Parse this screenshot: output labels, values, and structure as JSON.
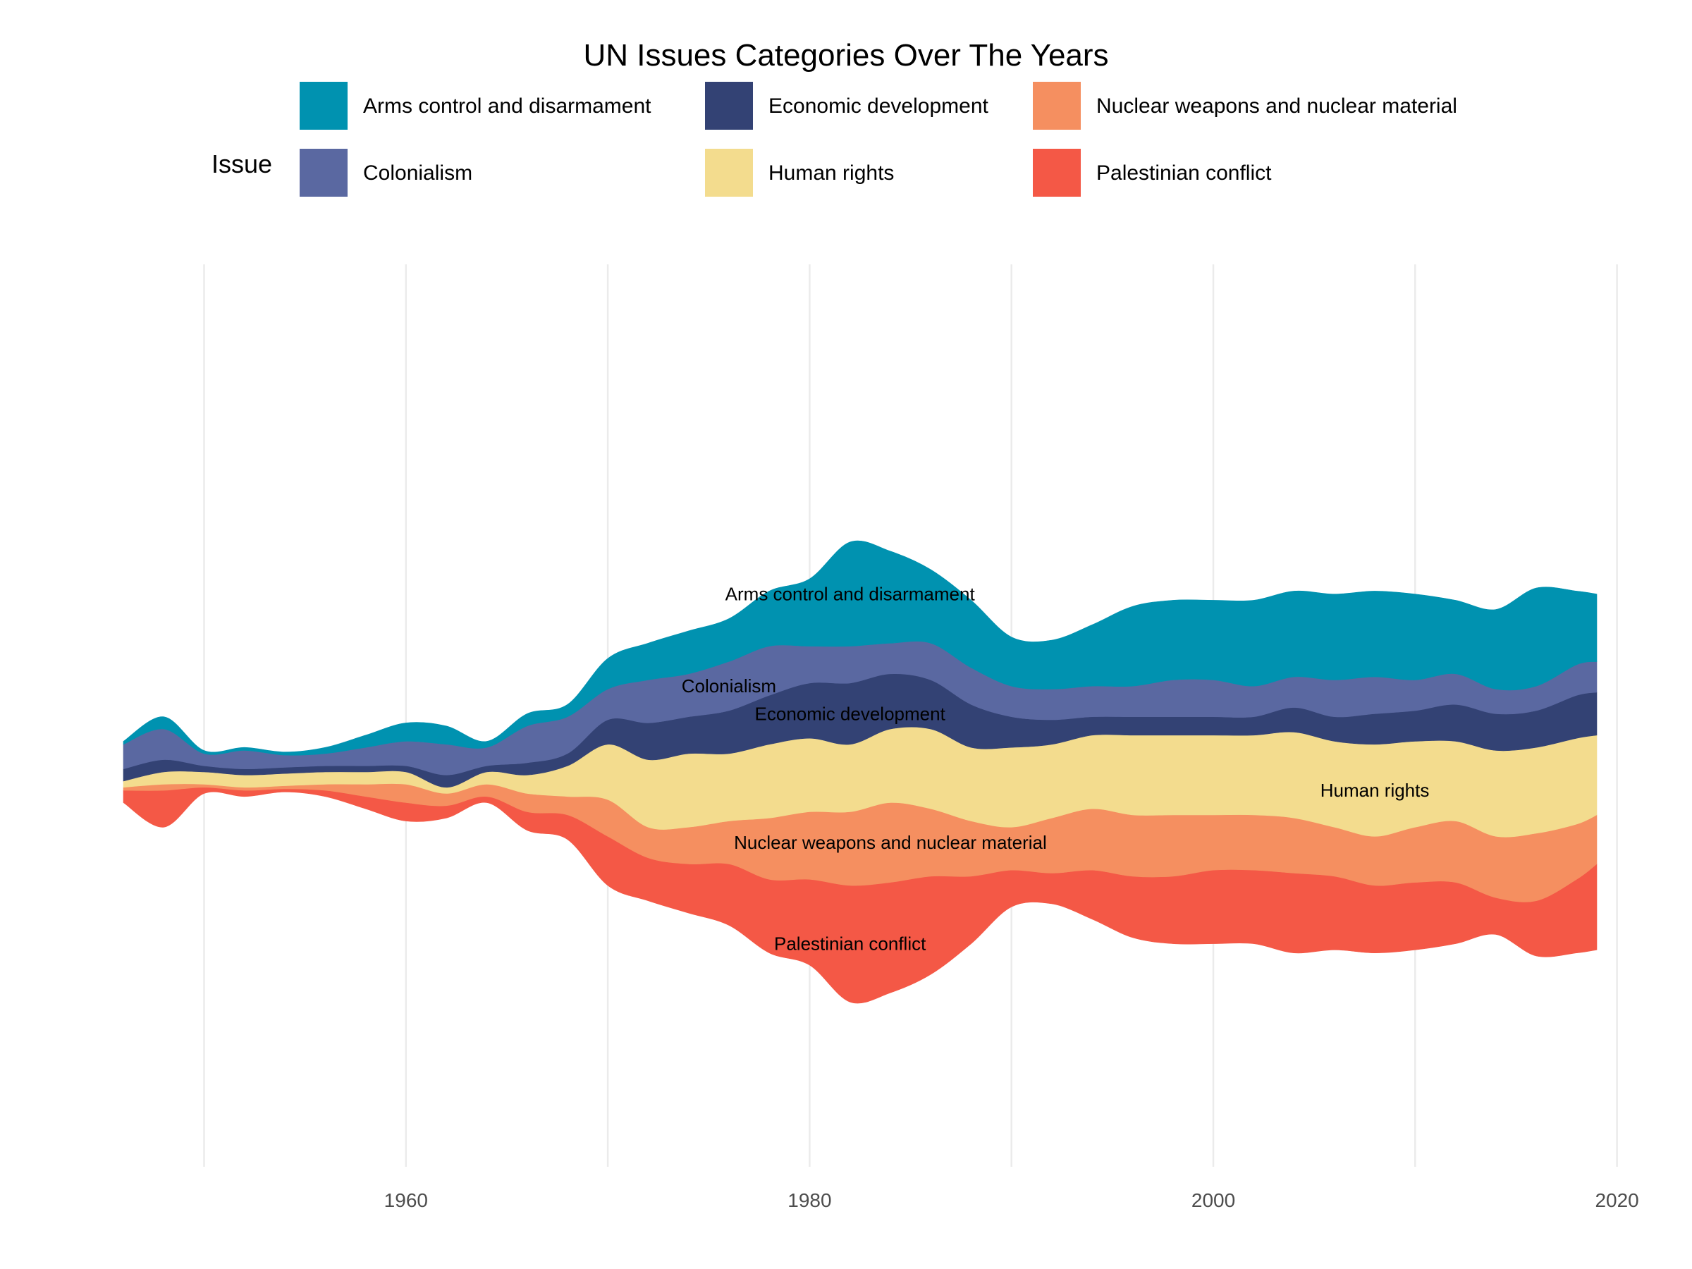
{
  "chart_data": {
    "type": "area",
    "subtype": "streamgraph",
    "title": "UN Issues Categories Over The Years",
    "legend_title": "Issue",
    "legend_position": "top",
    "grid": "vertical major and minor lines only",
    "xlabel": "",
    "ylabel": "",
    "x_ticks": [
      1960,
      1980,
      2000,
      2020
    ],
    "x_range": [
      1946,
      2019
    ],
    "colors": {
      "Arms control and disarmament": "#0092B0",
      "Colonialism": "#5A68A1",
      "Economic development": "#334274",
      "Human rights": "#F3DC8E",
      "Nuclear weapons and nuclear material": "#F58F60",
      "Palestinian conflict": "#F45846"
    },
    "legend": [
      "Arms control and disarmament",
      "Economic development",
      "Nuclear weapons and nuclear material",
      "Colonialism",
      "Human rights",
      "Palestinian conflict"
    ],
    "stack_order": [
      "Palestinian conflict",
      "Nuclear weapons and nuclear material",
      "Human rights",
      "Economic development",
      "Colonialism",
      "Arms control and disarmament"
    ],
    "x": [
      1946,
      1948,
      1950,
      1952,
      1954,
      1956,
      1958,
      1960,
      1962,
      1964,
      1966,
      1968,
      1970,
      1972,
      1974,
      1976,
      1978,
      1980,
      1982,
      1984,
      1986,
      1988,
      1990,
      1992,
      1994,
      1996,
      1998,
      2000,
      2002,
      2004,
      2006,
      2008,
      2010,
      2012,
      2014,
      2016,
      2018,
      2019
    ],
    "series": [
      {
        "name": "Palestinian conflict",
        "values": [
          2,
          6,
          1,
          1,
          0.5,
          1,
          2,
          3,
          2,
          1,
          3,
          4,
          8,
          7,
          8,
          10,
          12,
          14,
          19,
          18,
          16,
          11,
          6,
          5,
          8,
          10,
          11,
          12,
          12,
          13,
          12,
          11,
          11,
          10,
          6,
          9,
          12,
          14
        ]
      },
      {
        "name": "Nuclear weapons and nuclear material",
        "values": [
          0.5,
          1,
          0.5,
          0.5,
          0.5,
          1,
          2,
          3,
          2,
          2,
          3,
          3,
          6,
          5,
          6,
          7,
          10,
          11,
          12,
          13,
          11,
          9,
          7,
          9,
          10,
          10,
          10,
          9,
          9,
          9,
          8,
          8,
          9,
          10,
          10,
          11,
          9,
          8
        ]
      },
      {
        "name": "Human rights",
        "values": [
          1,
          2,
          2,
          2,
          2,
          2,
          2,
          2,
          1,
          2,
          3,
          5,
          9,
          11,
          12,
          11,
          12,
          12,
          11,
          12,
          13,
          12,
          13,
          12,
          12,
          13,
          13,
          13,
          13,
          14,
          14,
          15,
          14,
          13,
          14,
          14,
          14,
          13
        ]
      },
      {
        "name": "Economic development",
        "values": [
          2,
          2,
          1,
          1,
          1,
          1,
          1,
          1,
          2,
          1,
          2,
          2,
          4,
          6,
          6,
          7,
          8,
          9,
          10,
          9,
          8,
          7,
          5,
          4,
          3,
          3,
          3,
          3,
          3,
          4,
          4,
          5,
          5,
          6,
          6,
          6,
          7,
          7
        ]
      },
      {
        "name": "Colonialism",
        "values": [
          4,
          5,
          2,
          3,
          2,
          2,
          3,
          4,
          5,
          3,
          6,
          6,
          5,
          7,
          7,
          8,
          8,
          6,
          6,
          5,
          6,
          6,
          5,
          5,
          5,
          5,
          6,
          6,
          5,
          5,
          6,
          6,
          5,
          5,
          4,
          4,
          5,
          5
        ]
      },
      {
        "name": "Arms control and disarmament",
        "values": [
          0.5,
          2,
          0.5,
          0.5,
          0.5,
          1,
          2,
          3,
          3,
          1,
          2,
          2,
          5,
          6,
          7,
          7,
          9,
          11,
          17,
          15,
          12,
          11,
          8,
          8,
          10,
          13,
          13,
          13,
          14,
          14,
          14,
          14,
          14,
          12,
          13,
          16,
          12,
          11
        ]
      }
    ],
    "series_labels": [
      "Arms control and disarmament",
      "Colonialism",
      "Economic development",
      "Human rights",
      "Nuclear weapons and nuclear material",
      "Palestinian conflict"
    ]
  }
}
